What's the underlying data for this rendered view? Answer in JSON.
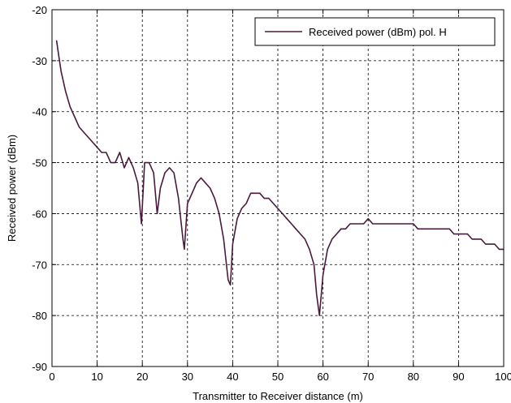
{
  "chart_data": {
    "type": "line",
    "title": "",
    "xlabel": "Transmitter to Receiver distance (m)",
    "ylabel": "Received power (dBm)",
    "xlim": [
      0,
      100
    ],
    "ylim": [
      -90,
      -20
    ],
    "xticks": [
      0,
      10,
      20,
      30,
      40,
      50,
      60,
      70,
      80,
      90,
      100
    ],
    "yticks": [
      -90,
      -80,
      -70,
      -60,
      -50,
      -40,
      -30,
      -20
    ],
    "xtick_labels": [
      "0",
      "10",
      "20",
      "30",
      "40",
      "50",
      "60",
      "70",
      "80",
      "90",
      "100"
    ],
    "ytick_labels": [
      "-90",
      "-80",
      "-70",
      "-60",
      "-50",
      "-40",
      "-30",
      "-20"
    ],
    "grid": true,
    "grid_style": "dashed",
    "legend_position": "top-right",
    "series": [
      {
        "name": "Received power (dBm) pol. H",
        "color": "#4a1a3c",
        "x": [
          1,
          1.5,
          2,
          3,
          4,
          5,
          6,
          7,
          8,
          9,
          10,
          11,
          12,
          13,
          14,
          15,
          16,
          17,
          18,
          19,
          19.8,
          20.5,
          21.5,
          22.5,
          23.3,
          24,
          25,
          26,
          27,
          28,
          29,
          29.3,
          30,
          31,
          32,
          33,
          34,
          35,
          36,
          37,
          38,
          39,
          39.5,
          40,
          41,
          42,
          43,
          44,
          45,
          46,
          47,
          48,
          49,
          50,
          51,
          52,
          53,
          54,
          55,
          56,
          57,
          58,
          58.6,
          59.2,
          60,
          61,
          62,
          63,
          64,
          65,
          66,
          67,
          68,
          69,
          70,
          71,
          72,
          73,
          74,
          75,
          76,
          77,
          78,
          79,
          80,
          81,
          82,
          83,
          84,
          85,
          86,
          87,
          88,
          89,
          90,
          91,
          92,
          93,
          94,
          95,
          96,
          97,
          98,
          99,
          100
        ],
        "y": [
          -26,
          -29,
          -32,
          -36,
          -39,
          -41,
          -43,
          -44,
          -45,
          -46,
          -47,
          -48,
          -48,
          -50,
          -50,
          -48,
          -51,
          -49,
          -51,
          -54,
          -62,
          -50,
          -50,
          -52,
          -60,
          -55,
          -52,
          -51,
          -52,
          -57,
          -65,
          -67,
          -58,
          -56,
          -54,
          -53,
          -54,
          -55,
          -57,
          -60,
          -65,
          -73,
          -74,
          -66,
          -61,
          -59,
          -58,
          -56,
          -56,
          -56,
          -57,
          -57,
          -58,
          -59,
          -60,
          -61,
          -62,
          -63,
          -64,
          -65,
          -67,
          -70,
          -76,
          -80,
          -72,
          -67,
          -65,
          -64,
          -63,
          -63,
          -62,
          -62,
          -62,
          -62,
          -61,
          -62,
          -62,
          -62,
          -62,
          -62,
          -62,
          -62,
          -62,
          -62,
          -62,
          -63,
          -63,
          -63,
          -63,
          -63,
          -63,
          -63,
          -63,
          -64,
          -64,
          -64,
          -64,
          -65,
          -65,
          -65,
          -66,
          -66,
          -66,
          -67,
          -67
        ]
      }
    ]
  }
}
